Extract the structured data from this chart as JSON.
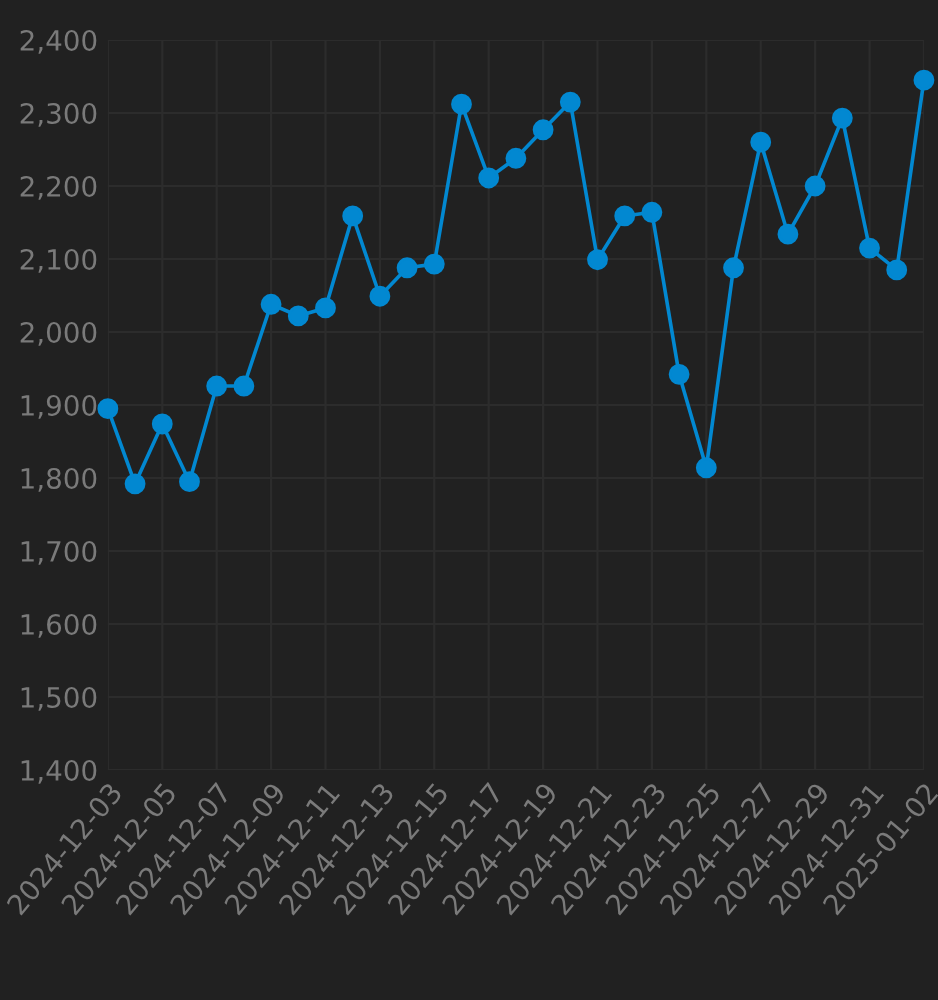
{
  "chart_data": {
    "type": "line",
    "marker": "circle",
    "line_style": "solid",
    "grid": true,
    "legend": false,
    "x": [
      "2024-12-03",
      "2024-12-04",
      "2024-12-05",
      "2024-12-06",
      "2024-12-07",
      "2024-12-08",
      "2024-12-09",
      "2024-12-10",
      "2024-12-11",
      "2024-12-12",
      "2024-12-13",
      "2024-12-14",
      "2024-12-15",
      "2024-12-16",
      "2024-12-17",
      "2024-12-18",
      "2024-12-19",
      "2024-12-20",
      "2024-12-21",
      "2024-12-22",
      "2024-12-23",
      "2024-12-24",
      "2024-12-25",
      "2024-12-26",
      "2024-12-27",
      "2024-12-28",
      "2024-12-29",
      "2024-12-30",
      "2024-12-31",
      "2025-01-01",
      "2025-01-02"
    ],
    "series": [
      {
        "color": "#0288d1",
        "values": [
          1895,
          1792,
          1874,
          1795,
          1926,
          1926,
          2038,
          2022,
          2033,
          2159,
          2049,
          2088,
          2093,
          2312,
          2211,
          2238,
          2277,
          2315,
          2099,
          2159,
          2164,
          1942,
          1814,
          2088,
          2260,
          2134,
          2200,
          2293,
          2115,
          2085,
          2345
        ]
      }
    ],
    "xlim": [
      "2024-12-03",
      "2025-01-02"
    ],
    "xticks": [
      "2024-12-03",
      "2024-12-05",
      "2024-12-07",
      "2024-12-09",
      "2024-12-11",
      "2024-12-13",
      "2024-12-15",
      "2024-12-17",
      "2024-12-19",
      "2024-12-21",
      "2024-12-23",
      "2024-12-25",
      "2024-12-27",
      "2024-12-29",
      "2024-12-31",
      "2025-01-02"
    ],
    "ylim": [
      1400,
      2400
    ],
    "yticks": [
      {
        "value": 1400,
        "label": "1,400"
      },
      {
        "value": 1500,
        "label": "1,500"
      },
      {
        "value": 1600,
        "label": "1,600"
      },
      {
        "value": 1700,
        "label": "1,700"
      },
      {
        "value": 1800,
        "label": "1,800"
      },
      {
        "value": 1900,
        "label": "1,900"
      },
      {
        "value": 2000,
        "label": "2,000"
      },
      {
        "value": 2100,
        "label": "2,100"
      },
      {
        "value": 2200,
        "label": "2,200"
      },
      {
        "value": 2300,
        "label": "2,300"
      },
      {
        "value": 2400,
        "label": "2,400"
      }
    ]
  }
}
